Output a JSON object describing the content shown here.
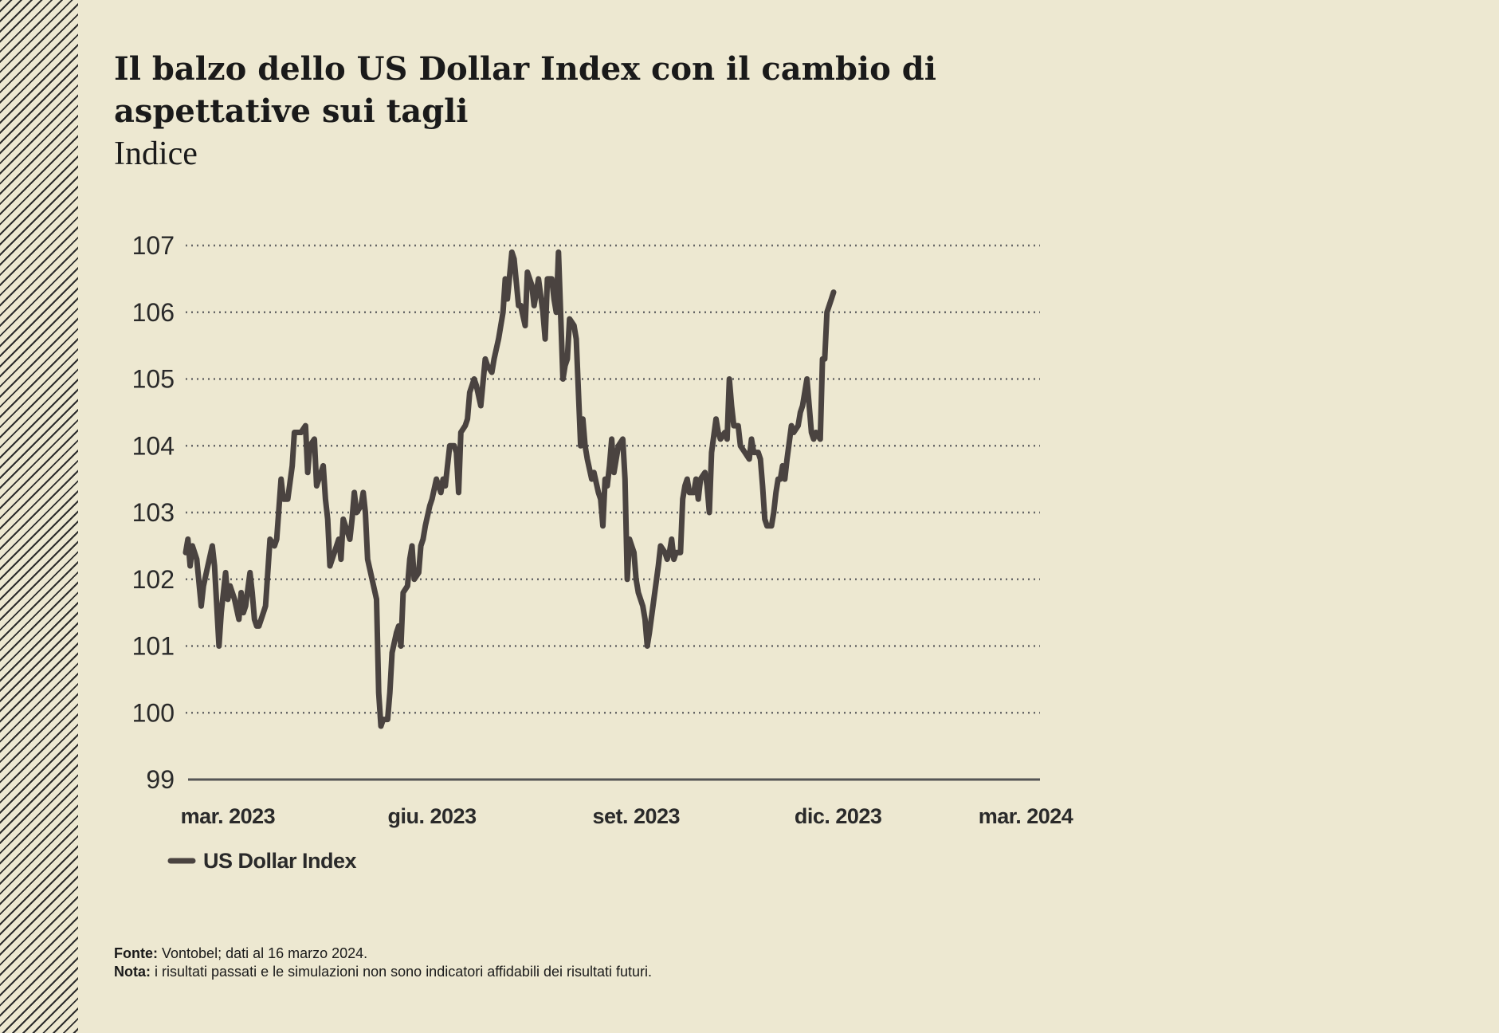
{
  "title": "Il balzo dello US Dollar Index con il cambio di aspettative sui tagli",
  "subtitle": "Indice",
  "footer": {
    "source_label": "Fonte:",
    "source_text": "Vontobel; dati al 16 marzo 2024.",
    "note_label": "Nota:",
    "note_text": "i risultati passati e le simulazioni non sono indicatori affidabili dei risultati futuri."
  },
  "colors": {
    "background": "#ede8d1",
    "line": "#4a4340",
    "grid": "#666666",
    "axis": "#555555"
  },
  "chart_data": {
    "type": "line",
    "title": "Il balzo dello US Dollar Index con il cambio di aspettative sui tagli",
    "ylabel": "Indice",
    "xlabel": "",
    "ylim": [
      99,
      107
    ],
    "yticks": [
      107,
      106,
      105,
      104,
      103,
      102,
      101,
      100,
      99
    ],
    "xlim": [
      0,
      385
    ],
    "xticks": [
      {
        "label": "mar. 2023",
        "x": 19
      },
      {
        "label": "giu. 2023",
        "x": 111
      },
      {
        "label": "set. 2023",
        "x": 203
      },
      {
        "label": "dic. 2023",
        "x": 294
      },
      {
        "label": "mar. 2024",
        "x": 385
      }
    ],
    "x_unit": "days since 2023-02-08 (approx.)",
    "grid": "horizontal dotted",
    "legend": {
      "position": "bottom-left",
      "entries": [
        "US Dollar Index"
      ]
    },
    "series": [
      {
        "name": "US Dollar Index",
        "points": [
          [
            0,
            102.4
          ],
          [
            1,
            102.6
          ],
          [
            2,
            102.2
          ],
          [
            3,
            102.5
          ],
          [
            5,
            102.3
          ],
          [
            7,
            101.6
          ],
          [
            8,
            101.9
          ],
          [
            10,
            102.2
          ],
          [
            12,
            102.5
          ],
          [
            13,
            102.2
          ],
          [
            15,
            101.0
          ],
          [
            16,
            101.5
          ],
          [
            18,
            102.1
          ],
          [
            19,
            101.7
          ],
          [
            20,
            101.9
          ],
          [
            22,
            101.7
          ],
          [
            24,
            101.4
          ],
          [
            25,
            101.8
          ],
          [
            26,
            101.5
          ],
          [
            27,
            101.6
          ],
          [
            29,
            102.1
          ],
          [
            30,
            101.8
          ],
          [
            31,
            101.4
          ],
          [
            32,
            101.3
          ],
          [
            33,
            101.3
          ],
          [
            35,
            101.5
          ],
          [
            36,
            101.6
          ],
          [
            38,
            102.6
          ],
          [
            40,
            102.5
          ],
          [
            41,
            102.6
          ],
          [
            43,
            103.5
          ],
          [
            44,
            103.2
          ],
          [
            46,
            103.2
          ],
          [
            48,
            103.7
          ],
          [
            49,
            104.2
          ],
          [
            51,
            104.2
          ],
          [
            52,
            104.2
          ],
          [
            54,
            104.3
          ],
          [
            55,
            103.6
          ],
          [
            56,
            104.0
          ],
          [
            58,
            104.1
          ],
          [
            59,
            103.4
          ],
          [
            61,
            103.6
          ],
          [
            62,
            103.7
          ],
          [
            63,
            103.2
          ],
          [
            64,
            102.9
          ],
          [
            65,
            102.2
          ],
          [
            67,
            102.4
          ],
          [
            68,
            102.5
          ],
          [
            69,
            102.6
          ],
          [
            70,
            102.3
          ],
          [
            71,
            102.9
          ],
          [
            72,
            102.8
          ],
          [
            74,
            102.6
          ],
          [
            75,
            102.9
          ],
          [
            76,
            103.3
          ],
          [
            77,
            103.0
          ],
          [
            79,
            103.1
          ],
          [
            80,
            103.3
          ],
          [
            81,
            103.0
          ],
          [
            82,
            102.3
          ],
          [
            84,
            102.0
          ],
          [
            86,
            101.7
          ],
          [
            87,
            100.3
          ],
          [
            88,
            99.8
          ],
          [
            89,
            99.9
          ],
          [
            91,
            99.9
          ],
          [
            92,
            100.3
          ],
          [
            93,
            100.9
          ],
          [
            95,
            101.2
          ],
          [
            96,
            101.3
          ],
          [
            97,
            101.0
          ],
          [
            98,
            101.8
          ],
          [
            100,
            101.9
          ],
          [
            101,
            102.3
          ],
          [
            102,
            102.5
          ],
          [
            103,
            102.0
          ],
          [
            105,
            102.1
          ],
          [
            106,
            102.5
          ],
          [
            107,
            102.6
          ],
          [
            108,
            102.8
          ],
          [
            110,
            103.1
          ],
          [
            111,
            103.2
          ],
          [
            113,
            103.5
          ],
          [
            115,
            103.3
          ],
          [
            116,
            103.5
          ],
          [
            117,
            103.4
          ],
          [
            119,
            104.0
          ],
          [
            121,
            104.0
          ],
          [
            122,
            103.9
          ],
          [
            123,
            103.3
          ],
          [
            124,
            104.2
          ],
          [
            126,
            104.3
          ],
          [
            127,
            104.4
          ],
          [
            128,
            104.8
          ],
          [
            130,
            105.0
          ],
          [
            131,
            104.9
          ],
          [
            133,
            104.6
          ],
          [
            135,
            105.3
          ],
          [
            136,
            105.2
          ],
          [
            138,
            105.1
          ],
          [
            139,
            105.3
          ],
          [
            141,
            105.6
          ],
          [
            143,
            106.0
          ],
          [
            144,
            106.5
          ],
          [
            145,
            106.2
          ],
          [
            147,
            106.9
          ],
          [
            148,
            106.8
          ],
          [
            150,
            106.1
          ],
          [
            151,
            106.1
          ],
          [
            153,
            105.8
          ],
          [
            154,
            106.6
          ],
          [
            155,
            106.5
          ],
          [
            156,
            106.4
          ],
          [
            157,
            106.1
          ],
          [
            159,
            106.5
          ],
          [
            161,
            106.0
          ],
          [
            162,
            105.6
          ],
          [
            163,
            106.5
          ],
          [
            165,
            106.5
          ],
          [
            166,
            106.2
          ],
          [
            167,
            106.0
          ],
          [
            168,
            106.9
          ],
          [
            170,
            105.0
          ],
          [
            171,
            105.2
          ],
          [
            172,
            105.3
          ],
          [
            173,
            105.9
          ],
          [
            175,
            105.8
          ],
          [
            176,
            105.6
          ],
          [
            178,
            104.0
          ],
          [
            179,
            104.4
          ],
          [
            180,
            104.0
          ],
          [
            181,
            103.8
          ],
          [
            183,
            103.5
          ],
          [
            184,
            103.6
          ],
          [
            186,
            103.3
          ],
          [
            187,
            103.2
          ],
          [
            188,
            102.8
          ],
          [
            189,
            103.5
          ],
          [
            190,
            103.4
          ],
          [
            191,
            103.7
          ],
          [
            192,
            104.1
          ],
          [
            193,
            103.6
          ],
          [
            195,
            104.0
          ],
          [
            197,
            104.1
          ],
          [
            198,
            103.5
          ],
          [
            199,
            102.0
          ],
          [
            200,
            102.6
          ],
          [
            202,
            102.4
          ],
          [
            203,
            102.0
          ],
          [
            204,
            101.8
          ],
          [
            206,
            101.6
          ],
          [
            207,
            101.4
          ],
          [
            208,
            101.0
          ],
          [
            209,
            101.2
          ],
          [
            211,
            101.7
          ],
          [
            213,
            102.2
          ],
          [
            214,
            102.5
          ],
          [
            216,
            102.4
          ],
          [
            217,
            102.3
          ],
          [
            218,
            102.4
          ],
          [
            219,
            102.6
          ],
          [
            220,
            102.3
          ],
          [
            221,
            102.4
          ],
          [
            223,
            102.4
          ],
          [
            224,
            103.2
          ],
          [
            225,
            103.4
          ],
          [
            226,
            103.5
          ],
          [
            227,
            103.3
          ],
          [
            229,
            103.3
          ],
          [
            230,
            103.5
          ],
          [
            231,
            103.2
          ],
          [
            232,
            103.5
          ],
          [
            234,
            103.6
          ],
          [
            235,
            103.4
          ],
          [
            236,
            103.0
          ],
          [
            237,
            103.9
          ],
          [
            239,
            104.4
          ],
          [
            240,
            104.2
          ],
          [
            241,
            104.1
          ],
          [
            243,
            104.2
          ],
          [
            244,
            104.1
          ],
          [
            245,
            105.0
          ],
          [
            246,
            104.6
          ],
          [
            247,
            104.3
          ],
          [
            249,
            104.3
          ],
          [
            250,
            104.0
          ],
          [
            252,
            103.9
          ],
          [
            254,
            103.8
          ],
          [
            255,
            104.1
          ],
          [
            256,
            103.9
          ],
          [
            258,
            103.9
          ],
          [
            259,
            103.8
          ],
          [
            260,
            103.4
          ],
          [
            261,
            102.9
          ],
          [
            262,
            102.8
          ],
          [
            264,
            102.8
          ],
          [
            265,
            103.0
          ],
          [
            266,
            103.3
          ],
          [
            267,
            103.5
          ],
          [
            268,
            103.5
          ],
          [
            269,
            103.7
          ],
          [
            270,
            103.5
          ],
          [
            271,
            103.8
          ],
          [
            273,
            104.3
          ],
          [
            274,
            104.2
          ],
          [
            276,
            104.3
          ],
          [
            277,
            104.5
          ],
          [
            278,
            104.6
          ],
          [
            280,
            105.0
          ],
          [
            281,
            104.6
          ],
          [
            282,
            104.2
          ],
          [
            283,
            104.1
          ],
          [
            284,
            104.2
          ],
          [
            286,
            104.1
          ],
          [
            287,
            105.3
          ],
          [
            288,
            105.3
          ],
          [
            289,
            106.0
          ],
          [
            291,
            106.2
          ],
          [
            292,
            106.3
          ]
        ]
      }
    ]
  }
}
